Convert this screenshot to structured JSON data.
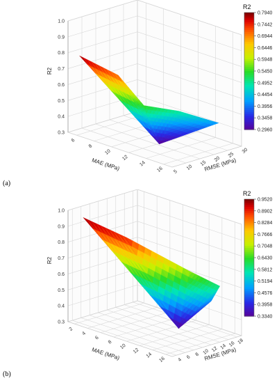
{
  "chart_data": [
    {
      "type": "surface3d",
      "panel_label": "(a)",
      "xlabel": "MAE (MPa)",
      "ylabel": "RMSE (MPa)",
      "zlabel": "R2",
      "x_ticks": [
        "6",
        "8",
        "10",
        "12",
        "14",
        "16"
      ],
      "y_ticks": [
        "5",
        "10",
        "15",
        "20",
        "25",
        "30"
      ],
      "z_ticks": [
        "0.3",
        "0.4",
        "0.5",
        "0.6",
        "0.7",
        "0.8",
        "0.9",
        "1.0"
      ],
      "xlim": [
        5,
        17
      ],
      "ylim": [
        5,
        30
      ],
      "zlim": [
        0.3,
        1.0
      ],
      "colorbar": {
        "title": "R2",
        "ticks": [
          "0.7940",
          "0.7442",
          "0.6944",
          "0.6446",
          "0.5948",
          "0.5450",
          "0.4952",
          "0.4454",
          "0.3956",
          "0.3458",
          "0.2960"
        ],
        "min": 0.296,
        "max": 0.794
      },
      "surface": [
        {
          "mae": 6.0,
          "rmse": 6.0,
          "r2": 0.794
        },
        {
          "mae": 9.5,
          "rmse": 9.0,
          "r2": 0.72
        },
        {
          "mae": 11.5,
          "rmse": 12.0,
          "r2": 0.55
        },
        {
          "mae": 13.0,
          "rmse": 20.0,
          "r2": 0.5
        },
        {
          "mae": 15.0,
          "rmse": 28.0,
          "r2": 0.42
        },
        {
          "mae": 12.0,
          "rmse": 16.0,
          "r2": 0.296
        }
      ]
    },
    {
      "type": "surface3d",
      "panel_label": "(b)",
      "xlabel": "MAE (MPa)",
      "ylabel": "RMSE (MPa)",
      "zlabel": "R2",
      "x_ticks": [
        "2",
        "4",
        "6",
        "8",
        "10",
        "12",
        "14",
        "16"
      ],
      "y_ticks": [
        "4",
        "6",
        "8",
        "10",
        "12",
        "14",
        "16",
        "18"
      ],
      "z_ticks": [
        "0.3",
        "0.4",
        "0.5",
        "0.6",
        "0.7",
        "0.8",
        "0.9",
        "1.0"
      ],
      "xlim": [
        1,
        17
      ],
      "ylim": [
        3,
        19
      ],
      "zlim": [
        0.3,
        1.0
      ],
      "colorbar": {
        "title": "R2",
        "ticks": [
          "0.9520",
          "0.8902",
          "0.8284",
          "0.7666",
          "0.7048",
          "0.6430",
          "0.5812",
          "0.5194",
          "0.4576",
          "0.3958",
          "0.3340"
        ],
        "min": 0.334,
        "max": 0.952
      },
      "surface": [
        {
          "mae": 2.0,
          "rmse": 5.0,
          "r2": 0.952
        },
        {
          "mae": 8.0,
          "rmse": 6.0,
          "r2": 0.9
        },
        {
          "mae": 13.0,
          "rmse": 13.0,
          "r2": 0.7
        },
        {
          "mae": 15.0,
          "rmse": 17.0,
          "r2": 0.6
        },
        {
          "mae": 13.0,
          "rmse": 18.0,
          "r2": 0.47
        },
        {
          "mae": 12.0,
          "rmse": 12.0,
          "r2": 0.334
        }
      ]
    }
  ]
}
